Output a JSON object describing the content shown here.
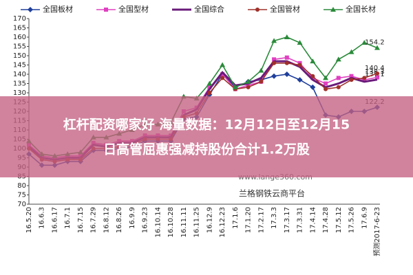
{
  "chart_data": {
    "type": "line",
    "categories": [
      "16.5.20",
      "16.6.3",
      "16.6.17",
      "16.7.1",
      "16.7.15",
      "16.7.29",
      "16.8.12",
      "16.8.26",
      "16.9.9",
      "16.9.23",
      "16.10.14",
      "16.10.28",
      "16.11.11",
      "16.11.25",
      "16.12.9",
      "16.12.23",
      "17.1.6",
      "17.1.20",
      "17.2.17",
      "17.3.3",
      "17.3.17",
      "17.3.31",
      "17.4.14",
      "17.4.28",
      "17.5.12",
      "17.5.26",
      "17.6.9",
      "预测2017-6-23"
    ],
    "series": [
      {
        "name": "全国板材",
        "color": "#1f3f9c",
        "marker": "diamond",
        "values": [
          97,
          91,
          91,
          93,
          93,
          99,
          99,
          100,
          101,
          104,
          104,
          104,
          116,
          117,
          129,
          140,
          133,
          136,
          137,
          139,
          140,
          137,
          133,
          118,
          117,
          120,
          120,
          122.2
        ]
      },
      {
        "name": "全国型材",
        "color": "#e040c0",
        "marker": "square",
        "values": [
          102,
          96,
          95,
          96,
          96,
          103,
          102,
          104,
          104,
          107,
          107,
          107,
          120,
          122,
          133,
          140,
          132,
          134,
          136,
          148,
          149,
          146,
          138,
          135,
          138,
          139,
          137,
          138.3
        ]
      },
      {
        "name": "全国综合",
        "color": "#6a1a7a",
        "marker": "none",
        "values": [
          101,
          95,
          94,
          95,
          95,
          102,
          101,
          103,
          103,
          106,
          106,
          106,
          118,
          121,
          132,
          141,
          134,
          135,
          138,
          147,
          147,
          144,
          137,
          133,
          135,
          138,
          136,
          137.1
        ]
      },
      {
        "name": "全国管材",
        "color": "#a0302a",
        "marker": "circle",
        "values": [
          100,
          94,
          93,
          94,
          94,
          100,
          100,
          101,
          102,
          105,
          105,
          105,
          117,
          119,
          130,
          138,
          132,
          133,
          136,
          146,
          146,
          145,
          139,
          132,
          133,
          137,
          138,
          140.4
        ]
      },
      {
        "name": "全国长材",
        "color": "#2a8a3a",
        "marker": "triangle",
        "values": [
          104,
          97,
          96,
          97,
          98,
          106,
          106,
          108,
          110,
          113,
          113,
          114,
          128,
          127,
          135,
          145,
          133,
          136,
          142,
          158,
          160,
          157,
          147,
          138,
          148,
          152,
          157,
          154.2
        ]
      }
    ],
    "ylim": [
      70,
      170
    ],
    "yticks": [
      70,
      75,
      80,
      85,
      90,
      95,
      100,
      105,
      110,
      115,
      120,
      125,
      130,
      135,
      140,
      145,
      150,
      155,
      160,
      165,
      170
    ],
    "grid": false,
    "annotations": [
      "www.lange360.com",
      "兰格钢铁云商平台"
    ]
  },
  "overlay": {
    "lines": [
      "杠杆配资哪家好 海量数据：12月12日至12月15",
      "日高管屈惠强减持股份合计1.2万股"
    ]
  }
}
